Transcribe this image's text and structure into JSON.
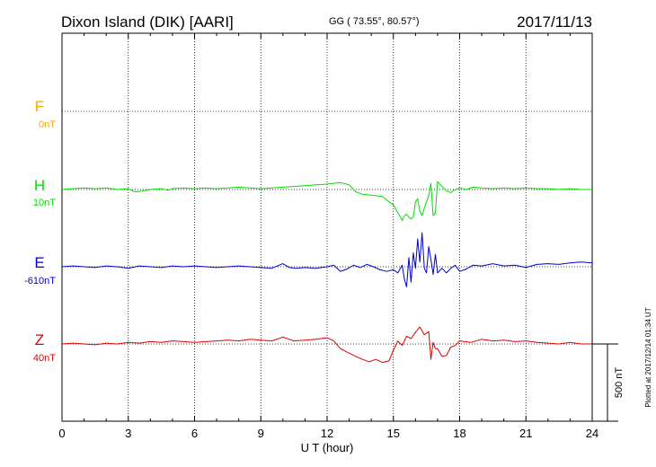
{
  "chart_data": {
    "type": "line",
    "title": "Dixon Island (DIK)  [AARI]",
    "coords": "GG ( 73.55°,  80.57°)",
    "date": "2017/11/13",
    "xlabel": "U T (hour)",
    "xlim": [
      0,
      24
    ],
    "xticks": [
      0,
      3,
      6,
      9,
      12,
      15,
      18,
      21,
      24
    ],
    "grid": true,
    "scale_bar_label": "500 nT",
    "scale_bar_nT": 500,
    "plotted_note": "Plotted at 2017/12/14 01:34 UT",
    "colors": {
      "F": "#ffa500",
      "H": "#00dd00",
      "E": "#0000cc",
      "Z": "#dd0000"
    },
    "series": [
      {
        "name": "F",
        "offset_label": "0nT",
        "x": [],
        "y": []
      },
      {
        "name": "H",
        "offset_label": "10nT",
        "x": [
          0,
          0.5,
          1,
          1.5,
          2,
          2.5,
          3,
          3.3,
          3.6,
          4,
          4.5,
          4.8,
          5,
          5.5,
          6,
          6.5,
          7,
          7.5,
          8,
          8.5,
          9,
          9.5,
          10,
          10.5,
          11,
          11.5,
          12,
          12.3,
          12.6,
          13,
          13.3,
          13.6,
          13.9,
          14.2,
          14.5,
          14.8,
          15,
          15.2,
          15.4,
          15.5,
          15.6,
          15.7,
          15.8,
          15.9,
          16,
          16.1,
          16.2,
          16.3,
          16.4,
          16.5,
          16.6,
          16.7,
          16.8,
          16.9,
          17,
          17.2,
          17.4,
          17.6,
          17.8,
          18,
          18.3,
          18.6,
          19,
          19.5,
          20,
          20.5,
          21,
          21.5,
          22,
          22.5,
          23,
          23.5,
          24
        ],
        "y": [
          0,
          5,
          10,
          5,
          10,
          0,
          5,
          -15,
          -10,
          0,
          5,
          -5,
          5,
          10,
          5,
          10,
          5,
          10,
          15,
          10,
          5,
          10,
          15,
          20,
          25,
          30,
          35,
          40,
          45,
          30,
          -15,
          -30,
          -35,
          -40,
          -45,
          -80,
          -100,
          -150,
          -200,
          -170,
          -160,
          -180,
          -190,
          -180,
          -80,
          -60,
          -140,
          -170,
          -120,
          -80,
          -40,
          40,
          -170,
          -150,
          50,
          20,
          -10,
          -20,
          0,
          10,
          0,
          15,
          10,
          5,
          10,
          5,
          10,
          5,
          5,
          0,
          5,
          0,
          0
        ]
      },
      {
        "name": "E",
        "offset_label": "-610nT",
        "x": [
          0,
          0.5,
          1,
          1.5,
          2,
          2.5,
          3,
          3.5,
          4,
          4.5,
          5,
          5.5,
          6,
          6.5,
          7,
          7.5,
          8,
          8.5,
          9,
          9.5,
          10,
          10.3,
          10.6,
          11,
          11.5,
          12,
          12.3,
          12.6,
          12.9,
          13.2,
          13.5,
          13.8,
          14.1,
          14.4,
          14.7,
          15,
          15.2,
          15.4,
          15.5,
          15.6,
          15.7,
          15.8,
          15.9,
          16,
          16.1,
          16.2,
          16.3,
          16.4,
          16.5,
          16.6,
          16.7,
          16.8,
          16.9,
          17,
          17.2,
          17.4,
          17.6,
          17.8,
          18,
          18.3,
          18.6,
          19,
          19.5,
          20,
          20.5,
          21,
          21.5,
          22,
          22.5,
          23,
          23.5,
          24
        ],
        "y": [
          0,
          5,
          0,
          -5,
          5,
          0,
          -10,
          5,
          0,
          -5,
          5,
          0,
          5,
          0,
          -5,
          0,
          5,
          0,
          -5,
          -10,
          20,
          -5,
          -10,
          -5,
          -10,
          0,
          10,
          -30,
          -15,
          10,
          -5,
          15,
          0,
          -20,
          -30,
          -20,
          -40,
          10,
          -80,
          -130,
          60,
          -100,
          90,
          -10,
          180,
          30,
          220,
          -10,
          -40,
          130,
          50,
          -50,
          80,
          -40,
          -10,
          -40,
          -10,
          10,
          -30,
          -15,
          10,
          5,
          20,
          5,
          10,
          -5,
          15,
          20,
          15,
          25,
          30,
          25
        ]
      },
      {
        "name": "Z",
        "offset_label": "40nT",
        "x": [
          0,
          0.5,
          1,
          1.5,
          2,
          2.5,
          3,
          3.5,
          4,
          4.5,
          5,
          5.5,
          6,
          6.5,
          7,
          7.5,
          8,
          8.5,
          9,
          9.5,
          10,
          10.5,
          11,
          11.5,
          12,
          12.3,
          12.6,
          13,
          13.3,
          13.6,
          13.9,
          14.2,
          14.5,
          14.8,
          15,
          15.2,
          15.4,
          15.6,
          15.8,
          16,
          16.2,
          16.4,
          16.6,
          16.7,
          16.8,
          16.9,
          17,
          17.2,
          17.4,
          17.6,
          17.8,
          18,
          18.5,
          19,
          19.5,
          20,
          20.5,
          21,
          21.5,
          22,
          22.5,
          23,
          23.5,
          24
        ],
        "y": [
          0,
          5,
          0,
          -5,
          5,
          0,
          10,
          5,
          15,
          10,
          20,
          15,
          10,
          15,
          20,
          25,
          20,
          30,
          25,
          20,
          45,
          20,
          25,
          30,
          40,
          20,
          -30,
          -60,
          -80,
          -100,
          -115,
          -100,
          -120,
          -110,
          -40,
          20,
          -10,
          50,
          35,
          75,
          110,
          60,
          80,
          -100,
          10,
          -30,
          -30,
          -80,
          -75,
          -20,
          -10,
          20,
          10,
          30,
          20,
          25,
          15,
          20,
          10,
          5,
          0,
          10,
          0,
          0
        ]
      }
    ]
  }
}
